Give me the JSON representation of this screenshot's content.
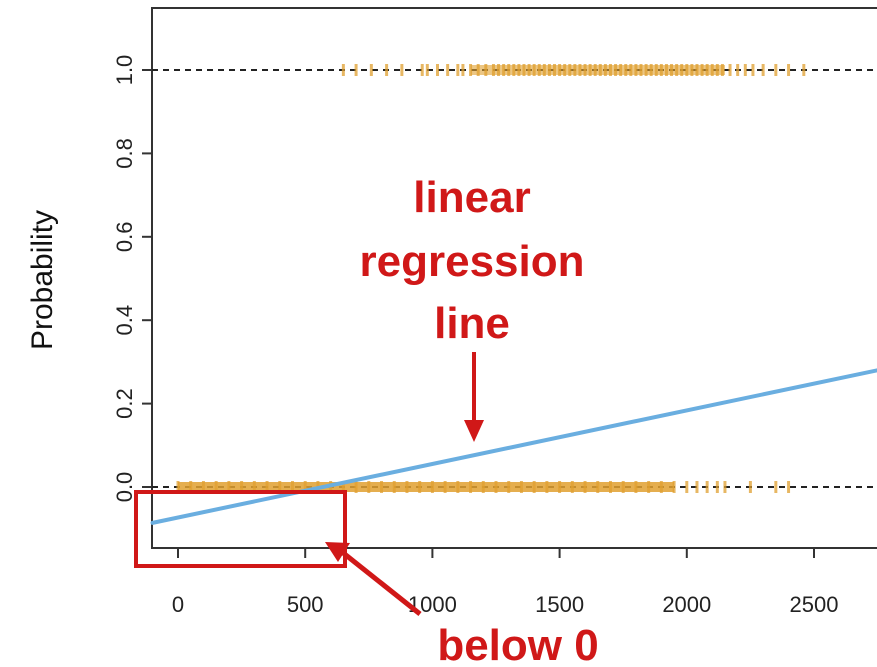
{
  "chart_data": {
    "type": "scatter",
    "title": "",
    "xlabel": "",
    "ylabel": "Probability",
    "xlim": [
      -100,
      2750
    ],
    "ylim": [
      -0.2,
      1.15
    ],
    "x_ticks": [
      0,
      500,
      1000,
      1500,
      2000,
      2500
    ],
    "x_tick_labels": [
      "0",
      "500",
      "1000",
      "1500",
      "2000",
      "2500"
    ],
    "y_ticks": [
      0.0,
      0.2,
      0.4,
      0.6,
      0.8,
      1.0
    ],
    "y_tick_labels": [
      "0.0",
      "0.2",
      "0.4",
      "0.6",
      "0.8",
      "1.0"
    ],
    "reference_lines": [
      0.0,
      1.0
    ],
    "rug_upper": {
      "y": 1.0,
      "x": [
        650,
        700,
        760,
        820,
        880,
        960,
        980,
        1020,
        1060,
        1100,
        1120,
        1150,
        1180,
        1210,
        1240,
        1260,
        1280,
        1300,
        1320,
        1340,
        1360,
        1380,
        1400,
        1420,
        1440,
        1460,
        1480,
        1500,
        1520,
        1540,
        1560,
        1580,
        1600,
        1620,
        1640,
        1660,
        1680,
        1700,
        1720,
        1740,
        1760,
        1780,
        1800,
        1820,
        1840,
        1860,
        1880,
        1900,
        1920,
        1940,
        1960,
        1980,
        2000,
        2020,
        2040,
        2060,
        2080,
        2100,
        2120,
        2140,
        2170,
        2200,
        2230,
        2260,
        2300,
        2350,
        2400,
        2460
      ]
    },
    "rug_lower": {
      "y": 0.0,
      "x": [
        0,
        50,
        100,
        150,
        200,
        250,
        300,
        350,
        400,
        450,
        500,
        550,
        600,
        650,
        700,
        750,
        800,
        850,
        900,
        950,
        1000,
        1050,
        1100,
        1150,
        1200,
        1250,
        1300,
        1350,
        1400,
        1450,
        1500,
        1550,
        1600,
        1650,
        1700,
        1750,
        1800,
        1850,
        1900,
        1950,
        2000,
        2040,
        2080,
        2120,
        2150,
        2250,
        2350,
        2400
      ]
    },
    "regression_line": {
      "x": [
        -100,
        2750
      ],
      "y": [
        -0.086,
        0.28
      ],
      "color": "#6aaee0"
    },
    "rug_color": "#e0a030",
    "annotation_color": "#d01818"
  },
  "annotations": {
    "linear_label": [
      "linear",
      "regression",
      "line"
    ],
    "below_label": "below 0"
  }
}
